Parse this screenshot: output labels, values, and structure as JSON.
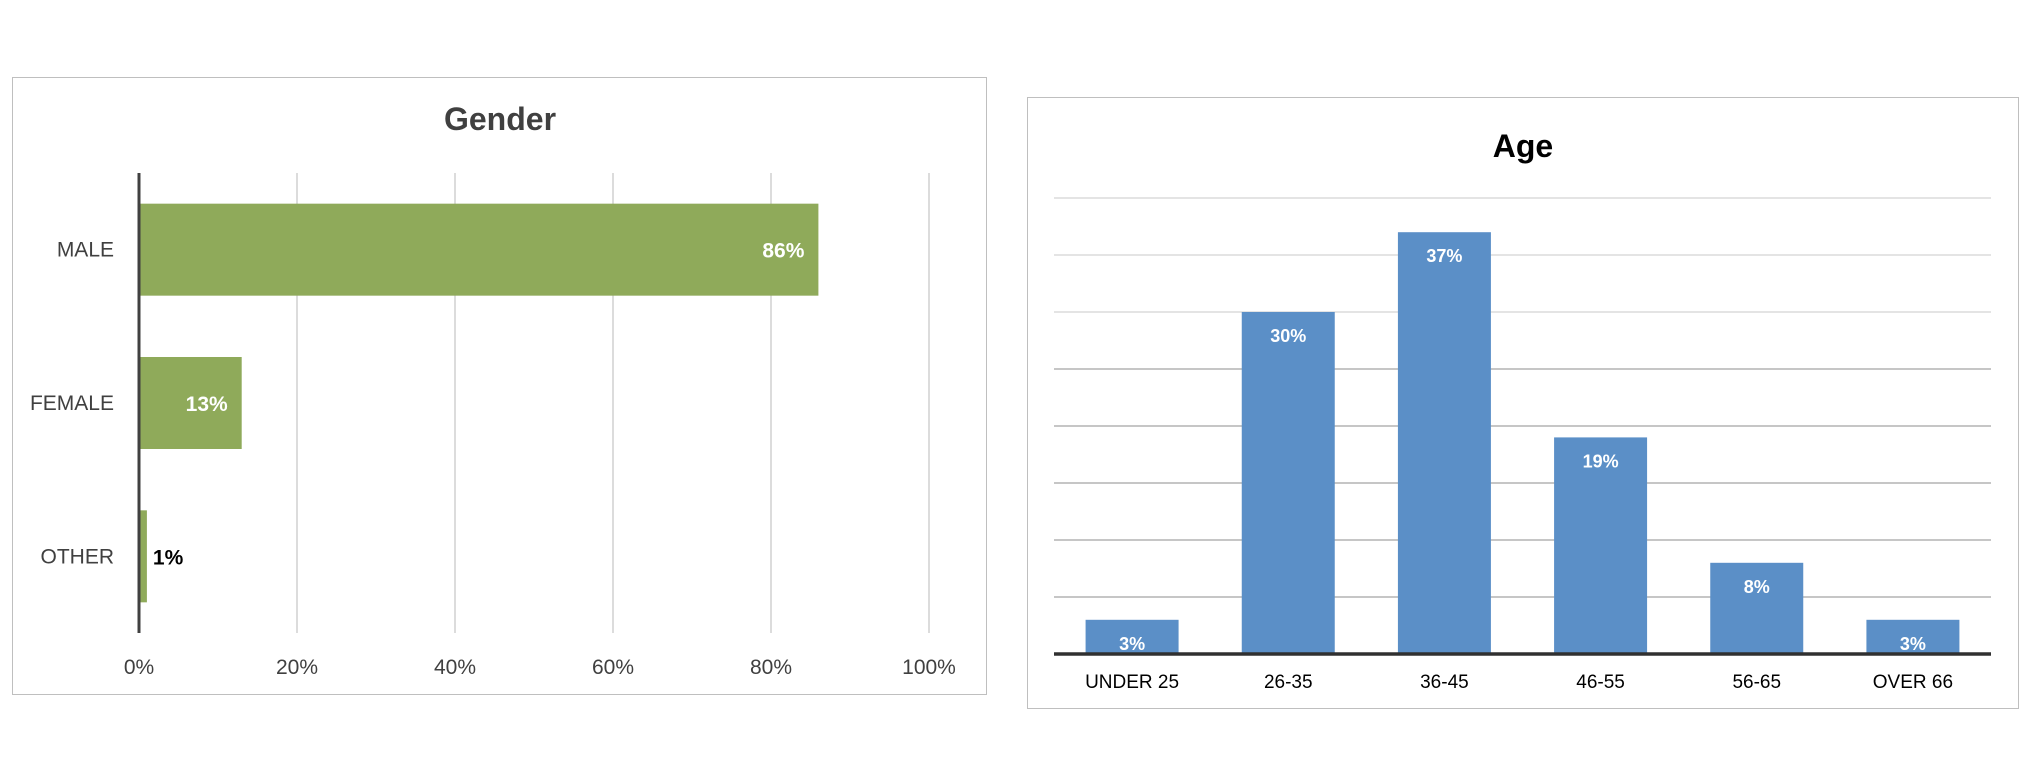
{
  "chart_data": [
    {
      "type": "bar",
      "orientation": "horizontal",
      "title": "Gender",
      "categories": [
        "MALE",
        "FEMALE",
        "OTHER"
      ],
      "values": [
        86,
        13,
        1
      ],
      "data_labels": [
        "86%",
        "13%",
        "1%"
      ],
      "x_ticks": [
        "0%",
        "20%",
        "40%",
        "60%",
        "80%",
        "100%"
      ],
      "xlim": [
        0,
        100
      ],
      "grid": true,
      "legend": "none",
      "bar_color": "#8faa5a"
    },
    {
      "type": "bar",
      "orientation": "vertical",
      "title": "Age",
      "categories": [
        "UNDER 25",
        "26-35",
        "36-45",
        "46-55",
        "56-65",
        "OVER 66"
      ],
      "values": [
        3,
        30,
        37,
        19,
        8,
        3
      ],
      "data_labels": [
        "3%",
        "30%",
        "37%",
        "19%",
        "8%",
        "3%"
      ],
      "ylim": [
        0,
        40
      ],
      "grid": true,
      "legend": "none",
      "bar_color": "#5b8fc7"
    }
  ]
}
